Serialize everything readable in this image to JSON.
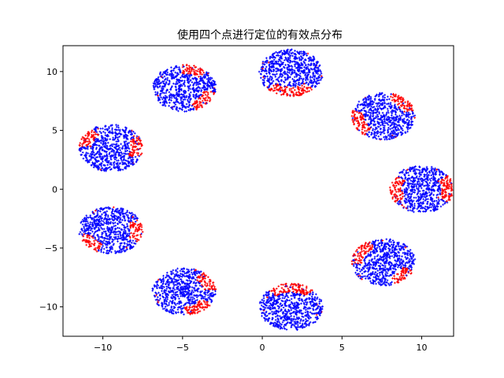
{
  "chart_data": {
    "type": "scatter",
    "title": "使用四个点进行定位的有效点分布",
    "xlabel": "",
    "ylabel": "",
    "xlim": [
      -12.5,
      12.0
    ],
    "ylim": [
      -12.5,
      12.2
    ],
    "xticks": [
      -10,
      -5,
      0,
      5,
      10
    ],
    "yticks": [
      -10,
      -5,
      0,
      5,
      10
    ],
    "xtick_labels": [
      "−10",
      "−5",
      "0",
      "5",
      "10"
    ],
    "ytick_labels": [
      "−10",
      "−5",
      "0",
      "5",
      "10"
    ],
    "grid": false,
    "legend": "none",
    "colors": {
      "valid": "#0000ff",
      "invalid": "#ff0000"
    },
    "clusters": [
      {
        "center": [
          1.8,
          9.9
        ],
        "radius": 2.0,
        "red_direction_deg": 270,
        "red_extent_deg": 90
      },
      {
        "center": [
          7.6,
          6.2
        ],
        "radius": 2.0,
        "red_direction_deg": 200,
        "red_extent_deg": 70,
        "red_direction2_deg": 45,
        "red_extent2_deg": 60
      },
      {
        "center": [
          10.0,
          0.0
        ],
        "radius": 2.0,
        "red_direction_deg": 180,
        "red_extent_deg": 70,
        "red_direction2_deg": 0,
        "red_extent2_deg": 70
      },
      {
        "center": [
          7.6,
          -6.2
        ],
        "radius": 2.0,
        "red_direction_deg": 150,
        "red_extent_deg": 70,
        "red_direction2_deg": 315,
        "red_extent2_deg": 50
      },
      {
        "center": [
          1.8,
          -10.0
        ],
        "radius": 2.0,
        "red_direction_deg": 90,
        "red_extent_deg": 90
      },
      {
        "center": [
          -4.9,
          -8.7
        ],
        "radius": 2.0,
        "red_direction_deg": 300,
        "red_extent_deg": 60,
        "red_direction2_deg": 30,
        "red_extent2_deg": 50
      },
      {
        "center": [
          -9.5,
          -3.5
        ],
        "radius": 2.0,
        "red_direction_deg": 0,
        "red_extent_deg": 60,
        "red_direction2_deg": 220,
        "red_extent2_deg": 50
      },
      {
        "center": [
          -9.5,
          3.5
        ],
        "radius": 2.0,
        "red_direction_deg": 0,
        "red_extent_deg": 60,
        "red_direction2_deg": 150,
        "red_extent2_deg": 50
      },
      {
        "center": [
          -4.9,
          8.6
        ],
        "radius": 2.0,
        "red_direction_deg": 320,
        "red_extent_deg": 60,
        "red_direction2_deg": 70,
        "red_extent2_deg": 50
      }
    ],
    "points_per_cluster": 700
  }
}
